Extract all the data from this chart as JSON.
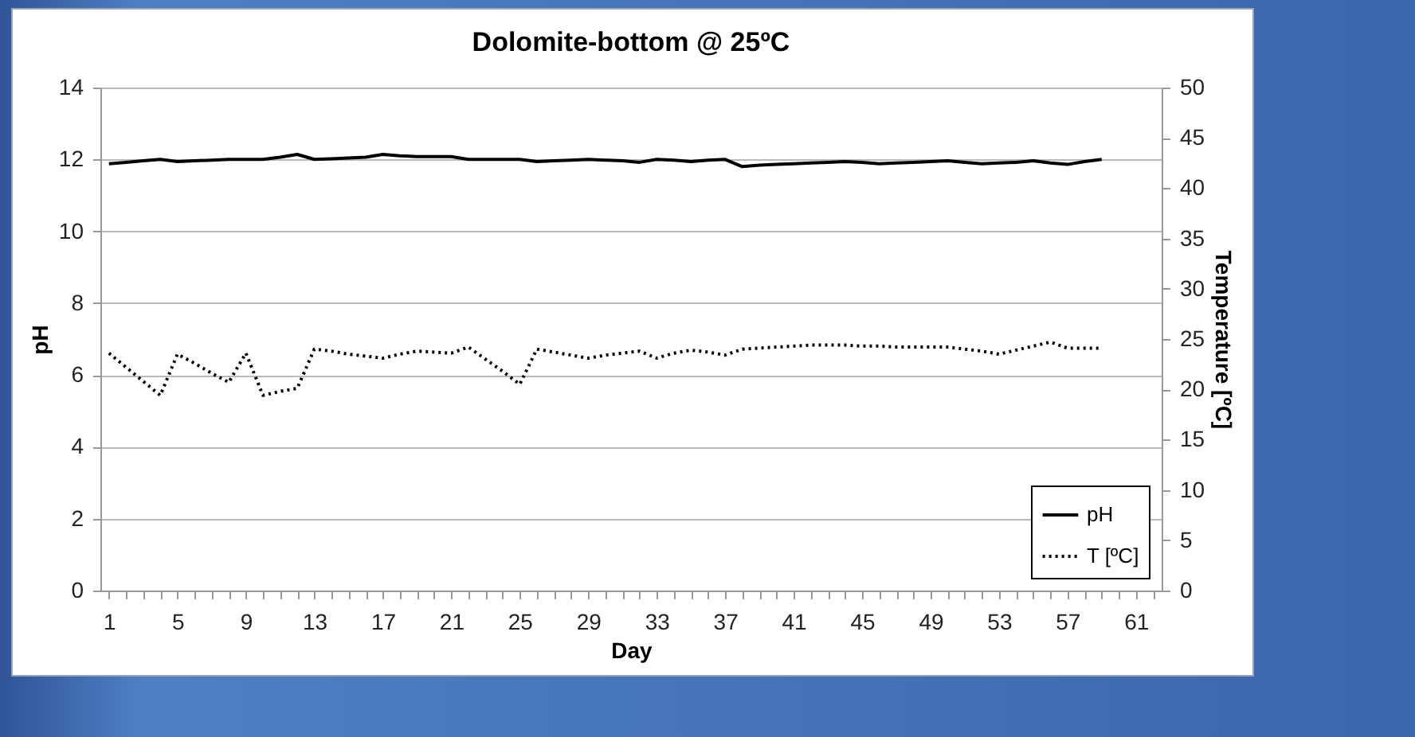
{
  "chart_data": {
    "type": "line",
    "title": "Dolomite-bottom @ 25ºC",
    "xlabel": "Day",
    "ylabel": "pH",
    "y2label": "Temperature [ºC]",
    "categories": [
      "1",
      null,
      null,
      null,
      "5",
      null,
      null,
      null,
      "9",
      null,
      null,
      null,
      "13",
      null,
      null,
      null,
      "17",
      null,
      null,
      null,
      "21",
      null,
      null,
      null,
      "25",
      null,
      null,
      null,
      "29",
      null,
      null,
      null,
      "33",
      null,
      null,
      null,
      "37",
      null,
      null,
      null,
      "41",
      null,
      null,
      null,
      "45",
      null,
      null,
      null,
      "49",
      null,
      null,
      null,
      "53",
      null,
      null,
      null,
      "57",
      null,
      null,
      null,
      "61",
      null
    ],
    "series": [
      {
        "name": "pH",
        "color": "#000000",
        "line_style": "solid",
        "values": [
          11.88,
          11.92,
          11.96,
          12.0,
          11.94,
          11.96,
          11.98,
          12.0,
          12.0,
          12.0,
          12.06,
          12.14,
          12.0,
          12.02,
          12.04,
          12.06,
          12.14,
          12.1,
          12.08,
          12.08,
          12.08,
          12.0,
          12.0,
          12.0,
          12.0,
          11.94,
          11.96,
          11.98,
          12.0,
          11.98,
          11.96,
          11.92,
          12.0,
          11.98,
          11.94,
          11.98,
          12.0,
          11.8,
          11.84,
          11.86,
          11.88,
          11.9,
          11.92,
          11.94,
          11.92,
          11.88,
          11.9,
          11.92,
          11.94,
          11.96,
          11.92,
          11.88,
          11.9,
          11.92,
          11.96,
          11.9,
          11.86,
          11.94,
          12.0,
          null,
          null,
          null
        ]
      },
      {
        "name": "T [ºC]",
        "color": "#000000",
        "line_style": "dotted",
        "axis": "y2",
        "values": [
          23.6,
          22.2,
          20.8,
          19.4,
          23.5,
          22.6,
          21.6,
          20.7,
          23.6,
          19.4,
          19.8,
          20.1,
          24.0,
          23.8,
          23.5,
          23.3,
          23.1,
          23.5,
          23.8,
          23.7,
          23.6,
          24.2,
          23.0,
          21.8,
          20.5,
          24.0,
          23.7,
          23.4,
          23.1,
          23.4,
          23.6,
          23.8,
          23.1,
          23.6,
          23.9,
          23.7,
          23.4,
          24.0,
          24.1,
          24.2,
          24.3,
          24.4,
          24.4,
          24.4,
          24.3,
          24.3,
          24.2,
          24.2,
          24.2,
          24.2,
          24.0,
          23.8,
          23.5,
          23.9,
          24.3,
          24.7,
          24.1,
          24.1,
          24.1,
          null,
          null,
          null
        ]
      }
    ],
    "ylim": [
      0,
      14
    ],
    "yticks": [
      0,
      2,
      4,
      6,
      8,
      10,
      12,
      14
    ],
    "y2lim": [
      0,
      50
    ],
    "y2ticks": [
      0,
      5,
      10,
      15,
      20,
      25,
      30,
      35,
      40,
      45,
      50
    ],
    "grid": "y",
    "legend": "bottom right",
    "marker": "none"
  }
}
